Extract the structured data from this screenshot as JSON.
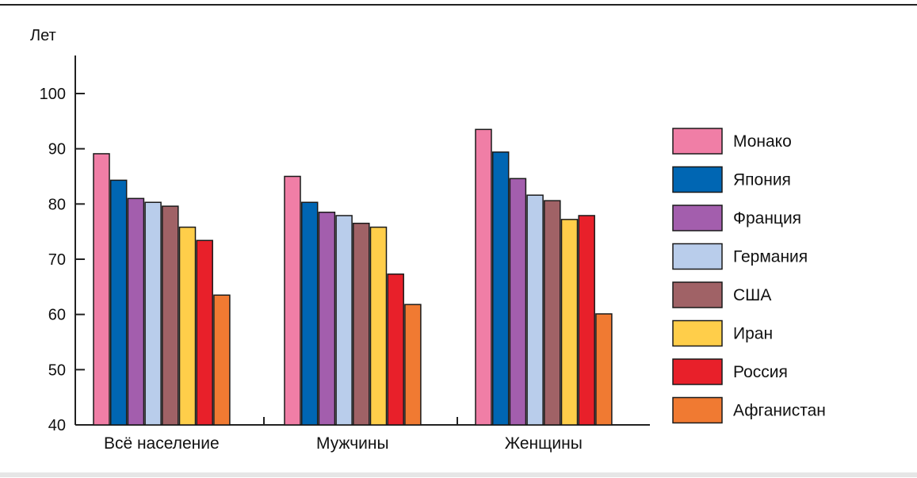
{
  "chart_data": {
    "type": "bar",
    "ylabel": "Лет",
    "ylim": [
      40,
      100
    ],
    "yticks": [
      40,
      50,
      60,
      70,
      80,
      90,
      100
    ],
    "categories": [
      "Всё население",
      "Мужчины",
      "Женщины"
    ],
    "series": [
      {
        "name": "Монако",
        "color": "#F07EA6",
        "values": [
          89.1,
          85.0,
          93.5
        ]
      },
      {
        "name": "Япония",
        "color": "#0066B3",
        "values": [
          84.3,
          80.3,
          89.4
        ]
      },
      {
        "name": "Франция",
        "color": "#A35EAD",
        "values": [
          81.0,
          78.5,
          84.6
        ]
      },
      {
        "name": "Германия",
        "color": "#B9CDEB",
        "values": [
          80.3,
          77.9,
          81.6
        ]
      },
      {
        "name": "США",
        "color": "#A06266",
        "values": [
          79.6,
          76.5,
          80.6
        ]
      },
      {
        "name": "Иран",
        "color": "#FFCE4A",
        "values": [
          75.8,
          75.8,
          77.2
        ]
      },
      {
        "name": "Россия",
        "color": "#E8202A",
        "values": [
          73.4,
          67.3,
          77.9
        ]
      },
      {
        "name": "Афганистан",
        "color": "#F07A32",
        "values": [
          63.5,
          61.8,
          60.1
        ]
      }
    ],
    "grid": false,
    "legend": "right"
  }
}
